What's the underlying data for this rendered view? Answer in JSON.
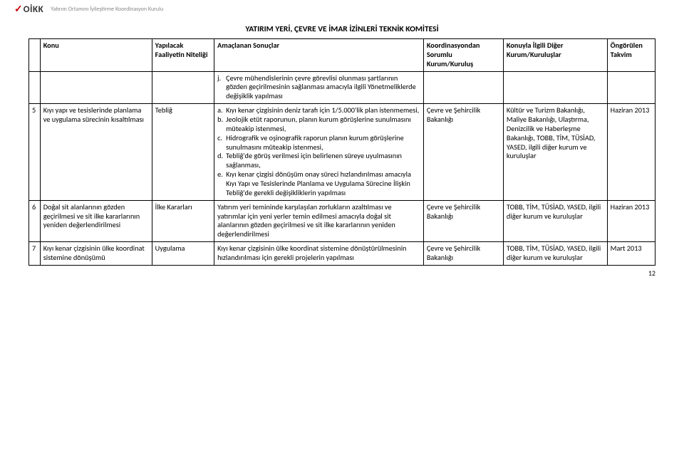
{
  "header": {
    "logo_mark": "✓",
    "logo_text": "OİKK",
    "subtitle": "Yatırım Ortamını İyileştirme Koordinasyon Kurulu"
  },
  "title": "YATIRIM YERİ, ÇEVRE VE İMAR İZİNLERİ TEKNİK KOMİTESİ",
  "columns": {
    "idx": "",
    "konu": "Konu",
    "faal": "Yapılacak Faaliyetin Niteliği",
    "amac": "Amaçlanan Sonuçlar",
    "koord": "Koordinasyondan Sorumlu Kurum/Kuruluş",
    "ilgili": "Konuyla İlgili Diğer Kurum/Kuruluşlar",
    "takv": "Öngörülen Takvim"
  },
  "row_j": {
    "item_j": "Çevre mühendislerinin çevre görevlisi olunması şartlarının gözden geçirilmesinin sağlanması amacıyla ilgili Yönetmeliklerde değişiklik yapılması"
  },
  "row5": {
    "idx": "5",
    "konu": "Kıyı yapı ve tesislerinde planlama ve uygulama sürecinin kısaltılması",
    "faal": "Tebliğ",
    "a": "Kıyı kenar çizgisinin deniz tarafı için 1/5.000'lik plan istenmemesi,",
    "b": "Jeolojik etüt raporunun, planın kurum görüşlerine sunulmasını müteakip istenmesi,",
    "c": "Hidrografik ve oşinografik raporun planın kurum görüşlerine sunulmasını müteakip istenmesi,",
    "d": "Tebliğ'de görüş verilmesi için belirlenen süreye uyulmasının sağlanması,",
    "e": "Kıyı kenar çizgisi dönüşüm onay süreci hızlandırılması amacıyla  Kıyı Yapı ve Tesislerinde Planlama ve Uygulama Sürecine İlişkin Tebliğ'de gerekli değişikliklerin yapılması",
    "koord": "Çevre ve Şehircilik Bakanlığı",
    "ilgili": "Kültür ve Turizm Bakanlığı, Maliye Bakanlığı, Ulaştırma, Denizcilik ve Haberleşme Bakanlığı, TOBB, TİM, TÜSİAD, YASED, ilgili diğer kurum ve kuruluşlar",
    "takv": "Haziran 2013"
  },
  "row6": {
    "idx": "6",
    "konu": "Doğal sit alanlarının gözden geçirilmesi ve sit ilke kararlarının yeniden değerlendirilmesi",
    "faal": "İlke Kararları",
    "amac": "Yatırım yeri temininde karşılaşılan zorlukların azaltılması ve yatırımlar için yeni yerler temin edilmesi amacıyla doğal sit alanlarının gözden geçirilmesi ve sit ilke kararlarının yeniden değerlendirilmesi",
    "koord": "Çevre ve Şehircilik Bakanlığı",
    "ilgili": "TOBB, TİM, TÜSİAD, YASED, ilgili diğer kurum ve kuruluşlar",
    "takv": "Haziran 2013"
  },
  "row7": {
    "idx": "7",
    "konu": "Kıyı kenar çizgisinin ülke koordinat sistemine dönüşümü",
    "faal": "Uygulama",
    "amac": "Kıyı kenar çizgisinin ülke koordinat sistemine dönüştürülmesinin hızlandırılması için gerekli projelerin yapılması",
    "koord": "Çevre ve Şehircilik Bakanlığı",
    "ilgili": "TOBB, TİM, TÜSİAD, YASED, ilgili diğer kurum ve kuruluşlar",
    "takv": "Mart 2013"
  },
  "page_number": "12"
}
